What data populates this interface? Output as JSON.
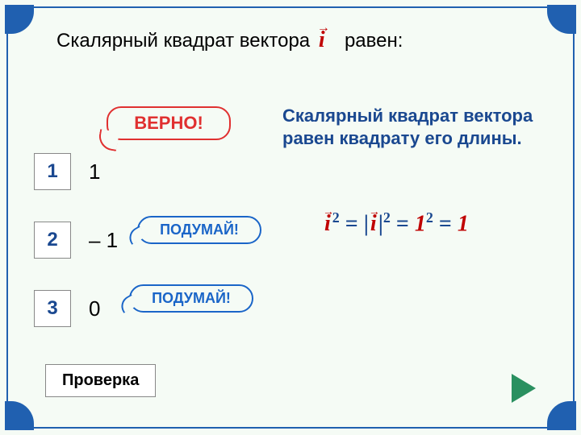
{
  "question": {
    "before": "Скалярный квадрат вектора",
    "vector_symbol": "i",
    "after": "равен:"
  },
  "explanation": "Скалярный квадрат вектора равен квадрату его длины.",
  "formula": {
    "i": "i",
    "eq": " = ",
    "bar": "|",
    "sq": "2",
    "one": "1"
  },
  "options": {
    "n1": "1",
    "a1": "1",
    "n2": "2",
    "a2": "– 1",
    "n3": "3",
    "a3": "0"
  },
  "bubbles": {
    "correct": "ВЕРНО!",
    "think": "ПОДУМАЙ!"
  },
  "buttons": {
    "check": "Проверка"
  },
  "colors": {
    "frame": "#2060b0",
    "accent_blue": "#1a4890",
    "accent_red": "#c00000",
    "bg": "#f5fbf5",
    "nav_green": "#2a9060"
  }
}
